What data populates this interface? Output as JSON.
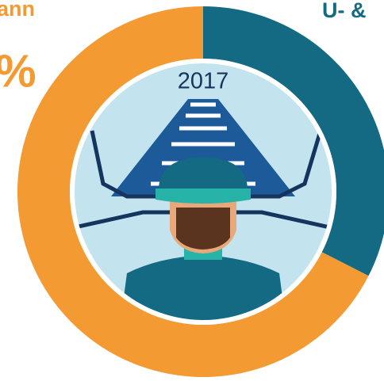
{
  "chart_data": {
    "type": "donut",
    "categories": [
      "U- &",
      "ann"
    ],
    "values": [
      32.5,
      67.5
    ],
    "colors": [
      "#136a82",
      "#f49a33"
    ],
    "center_label": "2017",
    "annotations": [
      "%"
    ]
  }
}
